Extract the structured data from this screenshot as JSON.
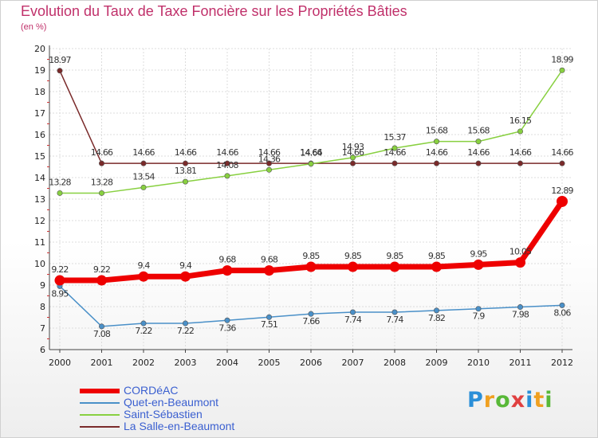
{
  "chart_data": {
    "type": "line",
    "title": "Evolution du Taux de Taxe Foncière sur les Propriétés Bâties",
    "unit_label": "(en %)",
    "x": [
      "2000",
      "2001",
      "2002",
      "2003",
      "2004",
      "2005",
      "2006",
      "2007",
      "2008",
      "2009",
      "2010",
      "2011",
      "2012"
    ],
    "ylim": [
      6,
      20
    ],
    "yticks": [
      "6",
      "7",
      "8",
      "9",
      "10",
      "11",
      "12",
      "13",
      "14",
      "15",
      "16",
      "17",
      "18",
      "19",
      "20"
    ],
    "series": [
      {
        "name": "CORDéAC",
        "color": "#ee0000",
        "values": [
          9.22,
          9.22,
          9.4,
          9.4,
          9.68,
          9.68,
          9.85,
          9.85,
          9.85,
          9.85,
          9.95,
          10.05,
          12.89
        ],
        "labels": [
          "9.22",
          "9.22",
          "9.4",
          "9.4",
          "9.68",
          "9.68",
          "9.85",
          "9.85",
          "9.85",
          "9.85",
          "9.95",
          "10.05",
          "12.89"
        ]
      },
      {
        "name": "Quet-en-Beaumont",
        "color": "#4a90c8",
        "values": [
          8.95,
          7.08,
          7.22,
          7.22,
          7.36,
          7.51,
          7.66,
          7.74,
          7.74,
          7.82,
          7.9,
          7.98,
          8.06
        ],
        "labels": [
          "8.95",
          "7.08",
          "7.22",
          "7.22",
          "7.36",
          "7.51",
          "7.66",
          "7.74",
          "7.74",
          "7.82",
          "7.9",
          "7.98",
          "8.06"
        ]
      },
      {
        "name": "Saint-Sébastien",
        "color": "#88d040",
        "values": [
          13.28,
          13.28,
          13.54,
          13.81,
          14.08,
          14.36,
          14.64,
          14.93,
          15.37,
          15.68,
          15.68,
          16.15,
          18.99
        ],
        "labels": [
          "13.28",
          "13.28",
          "13.54",
          "13.81",
          "14.08",
          "14.36",
          "14.64",
          "14.93",
          "15.37",
          "15.68",
          "15.68",
          "16.15",
          "18.99"
        ]
      },
      {
        "name": "La Salle-en-Beaumont",
        "color": "#7a2a2a",
        "values": [
          18.97,
          14.66,
          14.66,
          14.66,
          14.66,
          14.66,
          14.66,
          14.66,
          14.66,
          14.66,
          14.66,
          14.66,
          14.66
        ],
        "labels": [
          "18.97",
          "14.66",
          "14.66",
          "14.66",
          "14.66",
          "14.66",
          "14.66",
          "14.66",
          "14.66",
          "14.66",
          "14.66",
          "14.66",
          "14.66"
        ]
      }
    ]
  },
  "brand": {
    "letters": [
      "P",
      "r",
      "o",
      "x",
      "i",
      "t",
      "i"
    ],
    "colors": [
      "#2a8fd8",
      "#f0a020",
      "#58b838",
      "#e04040",
      "#2a8fd8",
      "#f0a020",
      "#58b838"
    ]
  }
}
